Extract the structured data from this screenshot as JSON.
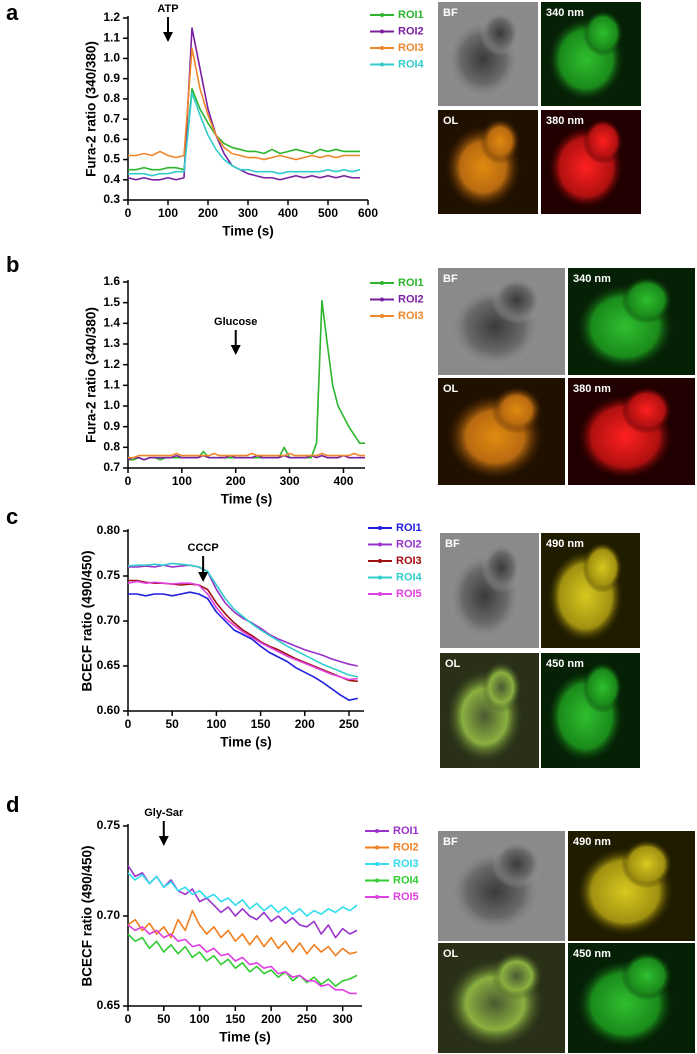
{
  "chart_data": [
    {
      "type": "line",
      "panel_label": "a",
      "ylabel": "Fura-2 ratio (340/380)",
      "xlabel": "Time (s)",
      "annotation": "ATP",
      "annotation_x": 100,
      "x": [
        0,
        20,
        40,
        60,
        80,
        100,
        120,
        140,
        160,
        180,
        200,
        220,
        240,
        260,
        280,
        300,
        320,
        340,
        360,
        380,
        400,
        420,
        440,
        460,
        480,
        500,
        520,
        540,
        560,
        580
      ],
      "series": [
        {
          "name": "ROI1",
          "color": "#2db52d",
          "values": [
            0.45,
            0.45,
            0.46,
            0.45,
            0.45,
            0.46,
            0.46,
            0.45,
            0.85,
            0.75,
            0.68,
            0.62,
            0.58,
            0.56,
            0.55,
            0.54,
            0.54,
            0.53,
            0.55,
            0.53,
            0.54,
            0.55,
            0.54,
            0.53,
            0.55,
            0.54,
            0.55,
            0.54,
            0.54,
            0.54
          ]
        },
        {
          "name": "ROI2",
          "color": "#7a1fa2",
          "values": [
            0.41,
            0.4,
            0.41,
            0.4,
            0.4,
            0.41,
            0.4,
            0.41,
            1.15,
            0.95,
            0.75,
            0.62,
            0.53,
            0.47,
            0.45,
            0.43,
            0.42,
            0.41,
            0.41,
            0.4,
            0.41,
            0.42,
            0.41,
            0.42,
            0.41,
            0.42,
            0.41,
            0.42,
            0.41,
            0.41
          ]
        },
        {
          "name": "ROI3",
          "color": "#f0862a",
          "values": [
            0.52,
            0.52,
            0.53,
            0.52,
            0.54,
            0.52,
            0.51,
            0.52,
            1.05,
            0.85,
            0.72,
            0.62,
            0.56,
            0.53,
            0.52,
            0.51,
            0.51,
            0.5,
            0.51,
            0.52,
            0.51,
            0.5,
            0.51,
            0.52,
            0.51,
            0.52,
            0.51,
            0.52,
            0.52,
            0.52
          ]
        },
        {
          "name": "ROI4",
          "color": "#33cccc",
          "values": [
            0.43,
            0.43,
            0.43,
            0.42,
            0.43,
            0.43,
            0.44,
            0.44,
            0.83,
            0.72,
            0.62,
            0.55,
            0.5,
            0.47,
            0.45,
            0.45,
            0.44,
            0.44,
            0.44,
            0.43,
            0.44,
            0.44,
            0.44,
            0.44,
            0.44,
            0.45,
            0.44,
            0.45,
            0.44,
            0.45
          ]
        }
      ],
      "xlim": [
        0,
        600
      ],
      "ylim": [
        0.3,
        1.2
      ],
      "xticks": [
        0,
        100,
        200,
        300,
        400,
        500,
        600
      ],
      "yticks": [
        0.3,
        0.4,
        0.5,
        0.6,
        0.7,
        0.8,
        0.9,
        {
          "value": 1,
          "label": "1.0"
        },
        1.1,
        1.2
      ],
      "image_labels": [
        "BF",
        "340 nm",
        "OL",
        "380 nm"
      ]
    },
    {
      "type": "line",
      "panel_label": "b",
      "ylabel": "Fura-2 ratio (340/380)",
      "xlabel": "Time (s)",
      "annotation": "Glucose",
      "annotation_x": 200,
      "x": [
        0,
        10,
        20,
        30,
        40,
        50,
        60,
        70,
        80,
        90,
        100,
        110,
        120,
        130,
        140,
        150,
        160,
        170,
        180,
        190,
        200,
        210,
        220,
        230,
        240,
        250,
        260,
        270,
        280,
        290,
        300,
        310,
        320,
        330,
        340,
        350,
        360,
        370,
        380,
        390,
        400,
        410,
        420,
        430,
        440
      ],
      "series": [
        {
          "name": "ROI1",
          "color": "#2db52d",
          "values": [
            0.74,
            0.74,
            0.75,
            0.74,
            0.75,
            0.75,
            0.74,
            0.75,
            0.75,
            0.75,
            0.75,
            0.75,
            0.75,
            0.75,
            0.78,
            0.75,
            0.75,
            0.75,
            0.75,
            0.75,
            0.75,
            0.75,
            0.75,
            0.75,
            0.75,
            0.75,
            0.75,
            0.75,
            0.75,
            0.8,
            0.75,
            0.75,
            0.75,
            0.75,
            0.75,
            0.82,
            1.51,
            1.3,
            1.1,
            1.0,
            0.95,
            0.9,
            0.86,
            0.82,
            0.82
          ]
        },
        {
          "name": "ROI2",
          "color": "#7a1fa2",
          "values": [
            0.74,
            0.75,
            0.75,
            0.74,
            0.75,
            0.75,
            0.75,
            0.75,
            0.75,
            0.76,
            0.75,
            0.75,
            0.75,
            0.75,
            0.76,
            0.75,
            0.75,
            0.75,
            0.75,
            0.76,
            0.75,
            0.75,
            0.75,
            0.75,
            0.76,
            0.75,
            0.75,
            0.75,
            0.75,
            0.76,
            0.75,
            0.75,
            0.75,
            0.75,
            0.76,
            0.75,
            0.76,
            0.75,
            0.75,
            0.75,
            0.76,
            0.75,
            0.75,
            0.75,
            0.75
          ]
        },
        {
          "name": "ROI3",
          "color": "#f0862a",
          "values": [
            0.75,
            0.75,
            0.76,
            0.76,
            0.76,
            0.76,
            0.76,
            0.76,
            0.76,
            0.77,
            0.76,
            0.76,
            0.76,
            0.76,
            0.76,
            0.76,
            0.77,
            0.76,
            0.76,
            0.76,
            0.76,
            0.76,
            0.76,
            0.77,
            0.76,
            0.76,
            0.76,
            0.76,
            0.76,
            0.76,
            0.77,
            0.76,
            0.76,
            0.76,
            0.76,
            0.76,
            0.77,
            0.76,
            0.76,
            0.76,
            0.76,
            0.76,
            0.77,
            0.76,
            0.76
          ]
        }
      ],
      "xlim": [
        0,
        440
      ],
      "ylim": [
        0.7,
        1.6
      ],
      "xticks": [
        0,
        100,
        200,
        300,
        400
      ],
      "yticks": [
        0.7,
        0.8,
        0.9,
        {
          "value": 1,
          "label": "1.0"
        },
        1.1,
        1.2,
        1.3,
        1.4,
        1.5,
        1.6
      ],
      "image_labels": [
        "BF",
        "340 nm",
        "OL",
        "380 nm"
      ]
    },
    {
      "type": "line",
      "panel_label": "c",
      "ylabel": "BCECF ratio (490/450)",
      "xlabel": "Time (s)",
      "annotation": "CCCP",
      "annotation_x": 85,
      "x": [
        0,
        10,
        20,
        30,
        40,
        50,
        60,
        70,
        80,
        90,
        100,
        110,
        120,
        130,
        140,
        150,
        160,
        170,
        180,
        190,
        200,
        210,
        220,
        230,
        240,
        250,
        260
      ],
      "series": [
        {
          "name": "ROI1",
          "color": "#1f1fe0",
          "values": [
            0.73,
            0.73,
            0.728,
            0.73,
            0.73,
            0.728,
            0.73,
            0.732,
            0.73,
            0.725,
            0.71,
            0.7,
            0.69,
            0.685,
            0.68,
            0.672,
            0.665,
            0.66,
            0.655,
            0.648,
            0.643,
            0.638,
            0.632,
            0.625,
            0.618,
            0.612,
            0.614
          ]
        },
        {
          "name": "ROI2",
          "color": "#9933cc",
          "values": [
            0.76,
            0.76,
            0.761,
            0.76,
            0.762,
            0.76,
            0.761,
            0.762,
            0.76,
            0.755,
            0.735,
            0.72,
            0.71,
            0.703,
            0.698,
            0.692,
            0.685,
            0.68,
            0.676,
            0.672,
            0.668,
            0.665,
            0.662,
            0.658,
            0.655,
            0.652,
            0.65
          ]
        },
        {
          "name": "ROI3",
          "color": "#a01010",
          "values": [
            0.745,
            0.745,
            0.743,
            0.742,
            0.742,
            0.741,
            0.74,
            0.741,
            0.74,
            0.735,
            0.72,
            0.708,
            0.698,
            0.69,
            0.684,
            0.677,
            0.672,
            0.668,
            0.663,
            0.658,
            0.654,
            0.65,
            0.646,
            0.642,
            0.638,
            0.634,
            0.633
          ]
        },
        {
          "name": "ROI4",
          "color": "#33cccc",
          "values": [
            0.761,
            0.762,
            0.762,
            0.763,
            0.762,
            0.764,
            0.763,
            0.762,
            0.76,
            0.755,
            0.74,
            0.725,
            0.713,
            0.705,
            0.697,
            0.69,
            0.684,
            0.678,
            0.672,
            0.667,
            0.662,
            0.657,
            0.652,
            0.648,
            0.644,
            0.64,
            0.638
          ]
        },
        {
          "name": "ROI5",
          "color": "#e040e0",
          "values": [
            0.742,
            0.744,
            0.742,
            0.743,
            0.742,
            0.741,
            0.742,
            0.742,
            0.74,
            0.73,
            0.715,
            0.703,
            0.695,
            0.688,
            0.682,
            0.676,
            0.671,
            0.666,
            0.661,
            0.657,
            0.653,
            0.649,
            0.645,
            0.641,
            0.638,
            0.635,
            0.636
          ]
        }
      ],
      "xlim": [
        0,
        267
      ],
      "ylim": [
        0.6,
        0.8
      ],
      "xticks": [
        0,
        50,
        100,
        150,
        200,
        250
      ],
      "yticks": [
        {
          "value": 0.6,
          "label": "0.60"
        },
        0.65,
        {
          "value": 0.7,
          "label": "0.70"
        },
        0.75,
        {
          "value": 0.8,
          "label": "0.80"
        }
      ],
      "image_labels": [
        "BF",
        "490 nm",
        "OL",
        "450 nm"
      ]
    },
    {
      "type": "line",
      "panel_label": "d",
      "ylabel": "BCECF ratio (490/450)",
      "xlabel": "Time (s)",
      "annotation": "Gly-Sar",
      "annotation_x": 50,
      "x": [
        0,
        10,
        20,
        30,
        40,
        50,
        60,
        70,
        80,
        90,
        100,
        110,
        120,
        130,
        140,
        150,
        160,
        170,
        180,
        190,
        200,
        210,
        220,
        230,
        240,
        250,
        260,
        270,
        280,
        290,
        300,
        310,
        320
      ],
      "series": [
        {
          "name": "ROI1",
          "color": "#9933cc",
          "values": [
            0.728,
            0.722,
            0.724,
            0.718,
            0.722,
            0.716,
            0.72,
            0.714,
            0.712,
            0.715,
            0.708,
            0.71,
            0.706,
            0.702,
            0.705,
            0.7,
            0.704,
            0.7,
            0.698,
            0.702,
            0.697,
            0.7,
            0.696,
            0.699,
            0.695,
            0.694,
            0.697,
            0.69,
            0.695,
            0.688,
            0.693,
            0.69,
            0.692
          ]
        },
        {
          "name": "ROI2",
          "color": "#f07f20",
          "values": [
            0.695,
            0.698,
            0.692,
            0.696,
            0.69,
            0.694,
            0.688,
            0.698,
            0.692,
            0.703,
            0.695,
            0.69,
            0.694,
            0.688,
            0.692,
            0.686,
            0.69,
            0.684,
            0.689,
            0.683,
            0.688,
            0.682,
            0.686,
            0.68,
            0.685,
            0.679,
            0.684,
            0.68,
            0.683,
            0.678,
            0.682,
            0.679,
            0.68
          ]
        },
        {
          "name": "ROI3",
          "color": "#33ddee",
          "values": [
            0.724,
            0.72,
            0.723,
            0.718,
            0.722,
            0.716,
            0.719,
            0.714,
            0.716,
            0.712,
            0.714,
            0.71,
            0.712,
            0.708,
            0.71,
            0.706,
            0.709,
            0.704,
            0.707,
            0.703,
            0.706,
            0.702,
            0.705,
            0.701,
            0.704,
            0.7,
            0.703,
            0.701,
            0.704,
            0.702,
            0.705,
            0.703,
            0.706
          ]
        },
        {
          "name": "ROI4",
          "color": "#33cc33",
          "values": [
            0.69,
            0.686,
            0.688,
            0.682,
            0.686,
            0.68,
            0.684,
            0.679,
            0.683,
            0.677,
            0.68,
            0.675,
            0.678,
            0.673,
            0.676,
            0.671,
            0.674,
            0.669,
            0.672,
            0.668,
            0.67,
            0.666,
            0.669,
            0.664,
            0.667,
            0.663,
            0.666,
            0.662,
            0.665,
            0.661,
            0.664,
            0.665,
            0.667
          ]
        },
        {
          "name": "ROI5",
          "color": "#e040e0",
          "values": [
            0.695,
            0.692,
            0.694,
            0.69,
            0.692,
            0.688,
            0.69,
            0.686,
            0.687,
            0.683,
            0.684,
            0.68,
            0.682,
            0.678,
            0.679,
            0.675,
            0.677,
            0.673,
            0.674,
            0.671,
            0.672,
            0.668,
            0.669,
            0.666,
            0.667,
            0.664,
            0.664,
            0.661,
            0.662,
            0.659,
            0.659,
            0.657,
            0.657
          ]
        }
      ],
      "xlim": [
        0,
        327
      ],
      "ylim": [
        0.65,
        0.75
      ],
      "xticks": [
        0,
        50,
        100,
        150,
        200,
        250,
        300
      ],
      "yticks": [
        0.65,
        {
          "value": 0.7,
          "label": "0.70"
        },
        0.75
      ],
      "image_labels": [
        "BF",
        "490 nm",
        "OL",
        "450 nm"
      ]
    }
  ]
}
